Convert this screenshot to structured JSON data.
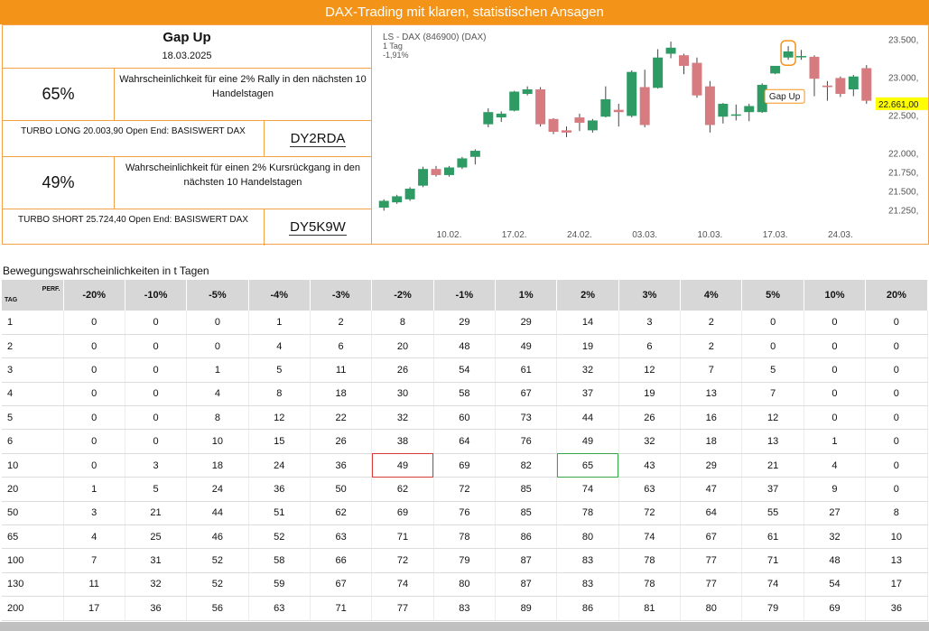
{
  "banner": {
    "title": "DAX-Trading mit klaren, statistischen Ansagen"
  },
  "left": {
    "title": "Gap Up",
    "date": "18.03.2025",
    "long": {
      "pct": "65%",
      "text": "Wahrscheinlichkeit für eine 2% Rally in den nächsten 10 Handelstagen",
      "product": "TURBO LONG 20.003,90 Open End: BASISWERT DAX",
      "wkn": "DY2RDA"
    },
    "short": {
      "pct": "49%",
      "text": "Wahrscheinlichkeit für einen 2% Kursrückgang in den nächsten 10 Handelstagen",
      "product": "TURBO SHORT 25.724,40 Open End: BASISWERT DAX",
      "wkn": "DY5K9W"
    }
  },
  "chart_data": {
    "type": "candlestick",
    "header": [
      "LS - DAX (846900) (DAX)",
      "1 Tag",
      "-1,91%"
    ],
    "ylim": [
      21100,
      23600
    ],
    "yticks": [
      21250,
      21500,
      21750,
      22000,
      22500,
      23000,
      23500
    ],
    "ytick_labels": [
      "21.250,",
      "21.500,",
      "21.750,",
      "22.000,",
      "22.500,",
      "23.000,",
      "23.500,"
    ],
    "xticks": [
      {
        "i": 5,
        "label": "10.02."
      },
      {
        "i": 10,
        "label": "17.02."
      },
      {
        "i": 15,
        "label": "24.02."
      },
      {
        "i": 20,
        "label": "03.03."
      },
      {
        "i": 25,
        "label": "10.03."
      },
      {
        "i": 30,
        "label": "17.03."
      },
      {
        "i": 35,
        "label": "24.03."
      }
    ],
    "last_price_label": "22.661,00",
    "last_price": 22661,
    "annotation": {
      "text": "Gap Up",
      "index": 31
    },
    "candles": [
      {
        "o": 21290,
        "h": 21400,
        "l": 21250,
        "c": 21380
      },
      {
        "o": 21360,
        "h": 21460,
        "l": 21340,
        "c": 21440
      },
      {
        "o": 21400,
        "h": 21560,
        "l": 21380,
        "c": 21540
      },
      {
        "o": 21580,
        "h": 21830,
        "l": 21560,
        "c": 21800
      },
      {
        "o": 21800,
        "h": 21840,
        "l": 21700,
        "c": 21720
      },
      {
        "o": 21720,
        "h": 21840,
        "l": 21700,
        "c": 21820
      },
      {
        "o": 21820,
        "h": 21960,
        "l": 21800,
        "c": 21940
      },
      {
        "o": 21960,
        "h": 22060,
        "l": 21860,
        "c": 22040
      },
      {
        "o": 22390,
        "h": 22600,
        "l": 22350,
        "c": 22550
      },
      {
        "o": 22480,
        "h": 22560,
        "l": 22420,
        "c": 22530
      },
      {
        "o": 22570,
        "h": 22830,
        "l": 22560,
        "c": 22820
      },
      {
        "o": 22790,
        "h": 22890,
        "l": 22770,
        "c": 22850
      },
      {
        "o": 22850,
        "h": 22880,
        "l": 22360,
        "c": 22390
      },
      {
        "o": 22460,
        "h": 22470,
        "l": 22260,
        "c": 22290
      },
      {
        "o": 22310,
        "h": 22360,
        "l": 22220,
        "c": 22280
      },
      {
        "o": 22480,
        "h": 22530,
        "l": 22300,
        "c": 22410
      },
      {
        "o": 22310,
        "h": 22460,
        "l": 22280,
        "c": 22440
      },
      {
        "o": 22490,
        "h": 22890,
        "l": 22480,
        "c": 22720
      },
      {
        "o": 22580,
        "h": 22660,
        "l": 22360,
        "c": 22550
      },
      {
        "o": 22500,
        "h": 23100,
        "l": 22480,
        "c": 23080
      },
      {
        "o": 22880,
        "h": 23110,
        "l": 22350,
        "c": 22380
      },
      {
        "o": 22870,
        "h": 23380,
        "l": 22860,
        "c": 23270
      },
      {
        "o": 23320,
        "h": 23480,
        "l": 23260,
        "c": 23400
      },
      {
        "o": 23300,
        "h": 23320,
        "l": 23050,
        "c": 23160
      },
      {
        "o": 23200,
        "h": 23270,
        "l": 22740,
        "c": 22770
      },
      {
        "o": 22890,
        "h": 22960,
        "l": 22280,
        "c": 22380
      },
      {
        "o": 22490,
        "h": 22670,
        "l": 22400,
        "c": 22660
      },
      {
        "o": 22510,
        "h": 22650,
        "l": 22440,
        "c": 22520
      },
      {
        "o": 22550,
        "h": 22660,
        "l": 22430,
        "c": 22630
      },
      {
        "o": 22550,
        "h": 22930,
        "l": 22540,
        "c": 22910
      },
      {
        "o": 23060,
        "h": 23160,
        "l": 23050,
        "c": 23160
      },
      {
        "o": 23270,
        "h": 23420,
        "l": 23240,
        "c": 23350
      },
      {
        "o": 23280,
        "h": 23370,
        "l": 23240,
        "c": 23290
      },
      {
        "o": 23280,
        "h": 23300,
        "l": 22760,
        "c": 22990
      },
      {
        "o": 22900,
        "h": 22960,
        "l": 22700,
        "c": 22880
      },
      {
        "o": 23000,
        "h": 23020,
        "l": 22750,
        "c": 22790
      },
      {
        "o": 22850,
        "h": 23040,
        "l": 22760,
        "c": 23020
      },
      {
        "o": 23130,
        "h": 23170,
        "l": 22660,
        "c": 22700
      }
    ]
  },
  "table": {
    "title": "Bewegungswahrscheinlichkeiten in t Tagen",
    "corner_top": "PERF.",
    "corner_bottom": "TAG",
    "columns": [
      "-20%",
      "-10%",
      "-5%",
      "-4%",
      "-3%",
      "-2%",
      "-1%",
      "1%",
      "2%",
      "3%",
      "4%",
      "5%",
      "10%",
      "20%"
    ],
    "rows": [
      {
        "day": "1",
        "values": [
          "0",
          "0",
          "0",
          "1",
          "2",
          "8",
          "29",
          "29",
          "14",
          "3",
          "2",
          "0",
          "0",
          "0"
        ]
      },
      {
        "day": "2",
        "values": [
          "0",
          "0",
          "0",
          "4",
          "6",
          "20",
          "48",
          "49",
          "19",
          "6",
          "2",
          "0",
          "0",
          "0"
        ]
      },
      {
        "day": "3",
        "values": [
          "0",
          "0",
          "1",
          "5",
          "11",
          "26",
          "54",
          "61",
          "32",
          "12",
          "7",
          "5",
          "0",
          "0"
        ]
      },
      {
        "day": "4",
        "values": [
          "0",
          "0",
          "4",
          "8",
          "18",
          "30",
          "58",
          "67",
          "37",
          "19",
          "13",
          "7",
          "0",
          "0"
        ]
      },
      {
        "day": "5",
        "values": [
          "0",
          "0",
          "8",
          "12",
          "22",
          "32",
          "60",
          "73",
          "44",
          "26",
          "16",
          "12",
          "0",
          "0"
        ]
      },
      {
        "day": "6",
        "values": [
          "0",
          "0",
          "10",
          "15",
          "26",
          "38",
          "64",
          "76",
          "49",
          "32",
          "18",
          "13",
          "1",
          "0"
        ]
      },
      {
        "day": "10",
        "values": [
          "0",
          "3",
          "18",
          "24",
          "36",
          "49",
          "69",
          "82",
          "65",
          "43",
          "29",
          "21",
          "4",
          "0"
        ]
      },
      {
        "day": "20",
        "values": [
          "1",
          "5",
          "24",
          "36",
          "50",
          "62",
          "72",
          "85",
          "74",
          "63",
          "47",
          "37",
          "9",
          "0"
        ]
      },
      {
        "day": "50",
        "values": [
          "3",
          "21",
          "44",
          "51",
          "62",
          "69",
          "76",
          "85",
          "78",
          "72",
          "64",
          "55",
          "27",
          "8"
        ]
      },
      {
        "day": "65",
        "values": [
          "4",
          "25",
          "46",
          "52",
          "63",
          "71",
          "78",
          "86",
          "80",
          "74",
          "67",
          "61",
          "32",
          "10"
        ]
      },
      {
        "day": "100",
        "values": [
          "7",
          "31",
          "52",
          "58",
          "66",
          "72",
          "79",
          "87",
          "83",
          "78",
          "77",
          "71",
          "48",
          "13"
        ]
      },
      {
        "day": "130",
        "values": [
          "11",
          "32",
          "52",
          "59",
          "67",
          "74",
          "80",
          "87",
          "83",
          "78",
          "77",
          "74",
          "54",
          "17"
        ]
      },
      {
        "day": "200",
        "values": [
          "17",
          "36",
          "56",
          "63",
          "71",
          "77",
          "83",
          "89",
          "86",
          "81",
          "80",
          "79",
          "69",
          "36"
        ]
      }
    ],
    "highlight_red": {
      "row": 6,
      "col": 5
    },
    "highlight_green": {
      "row": 6,
      "col": 8
    },
    "colors": {
      "up": "#2e9a64",
      "down": "#d67c80",
      "header_bg": "#d7d7d7",
      "accent": "#f39419"
    }
  }
}
